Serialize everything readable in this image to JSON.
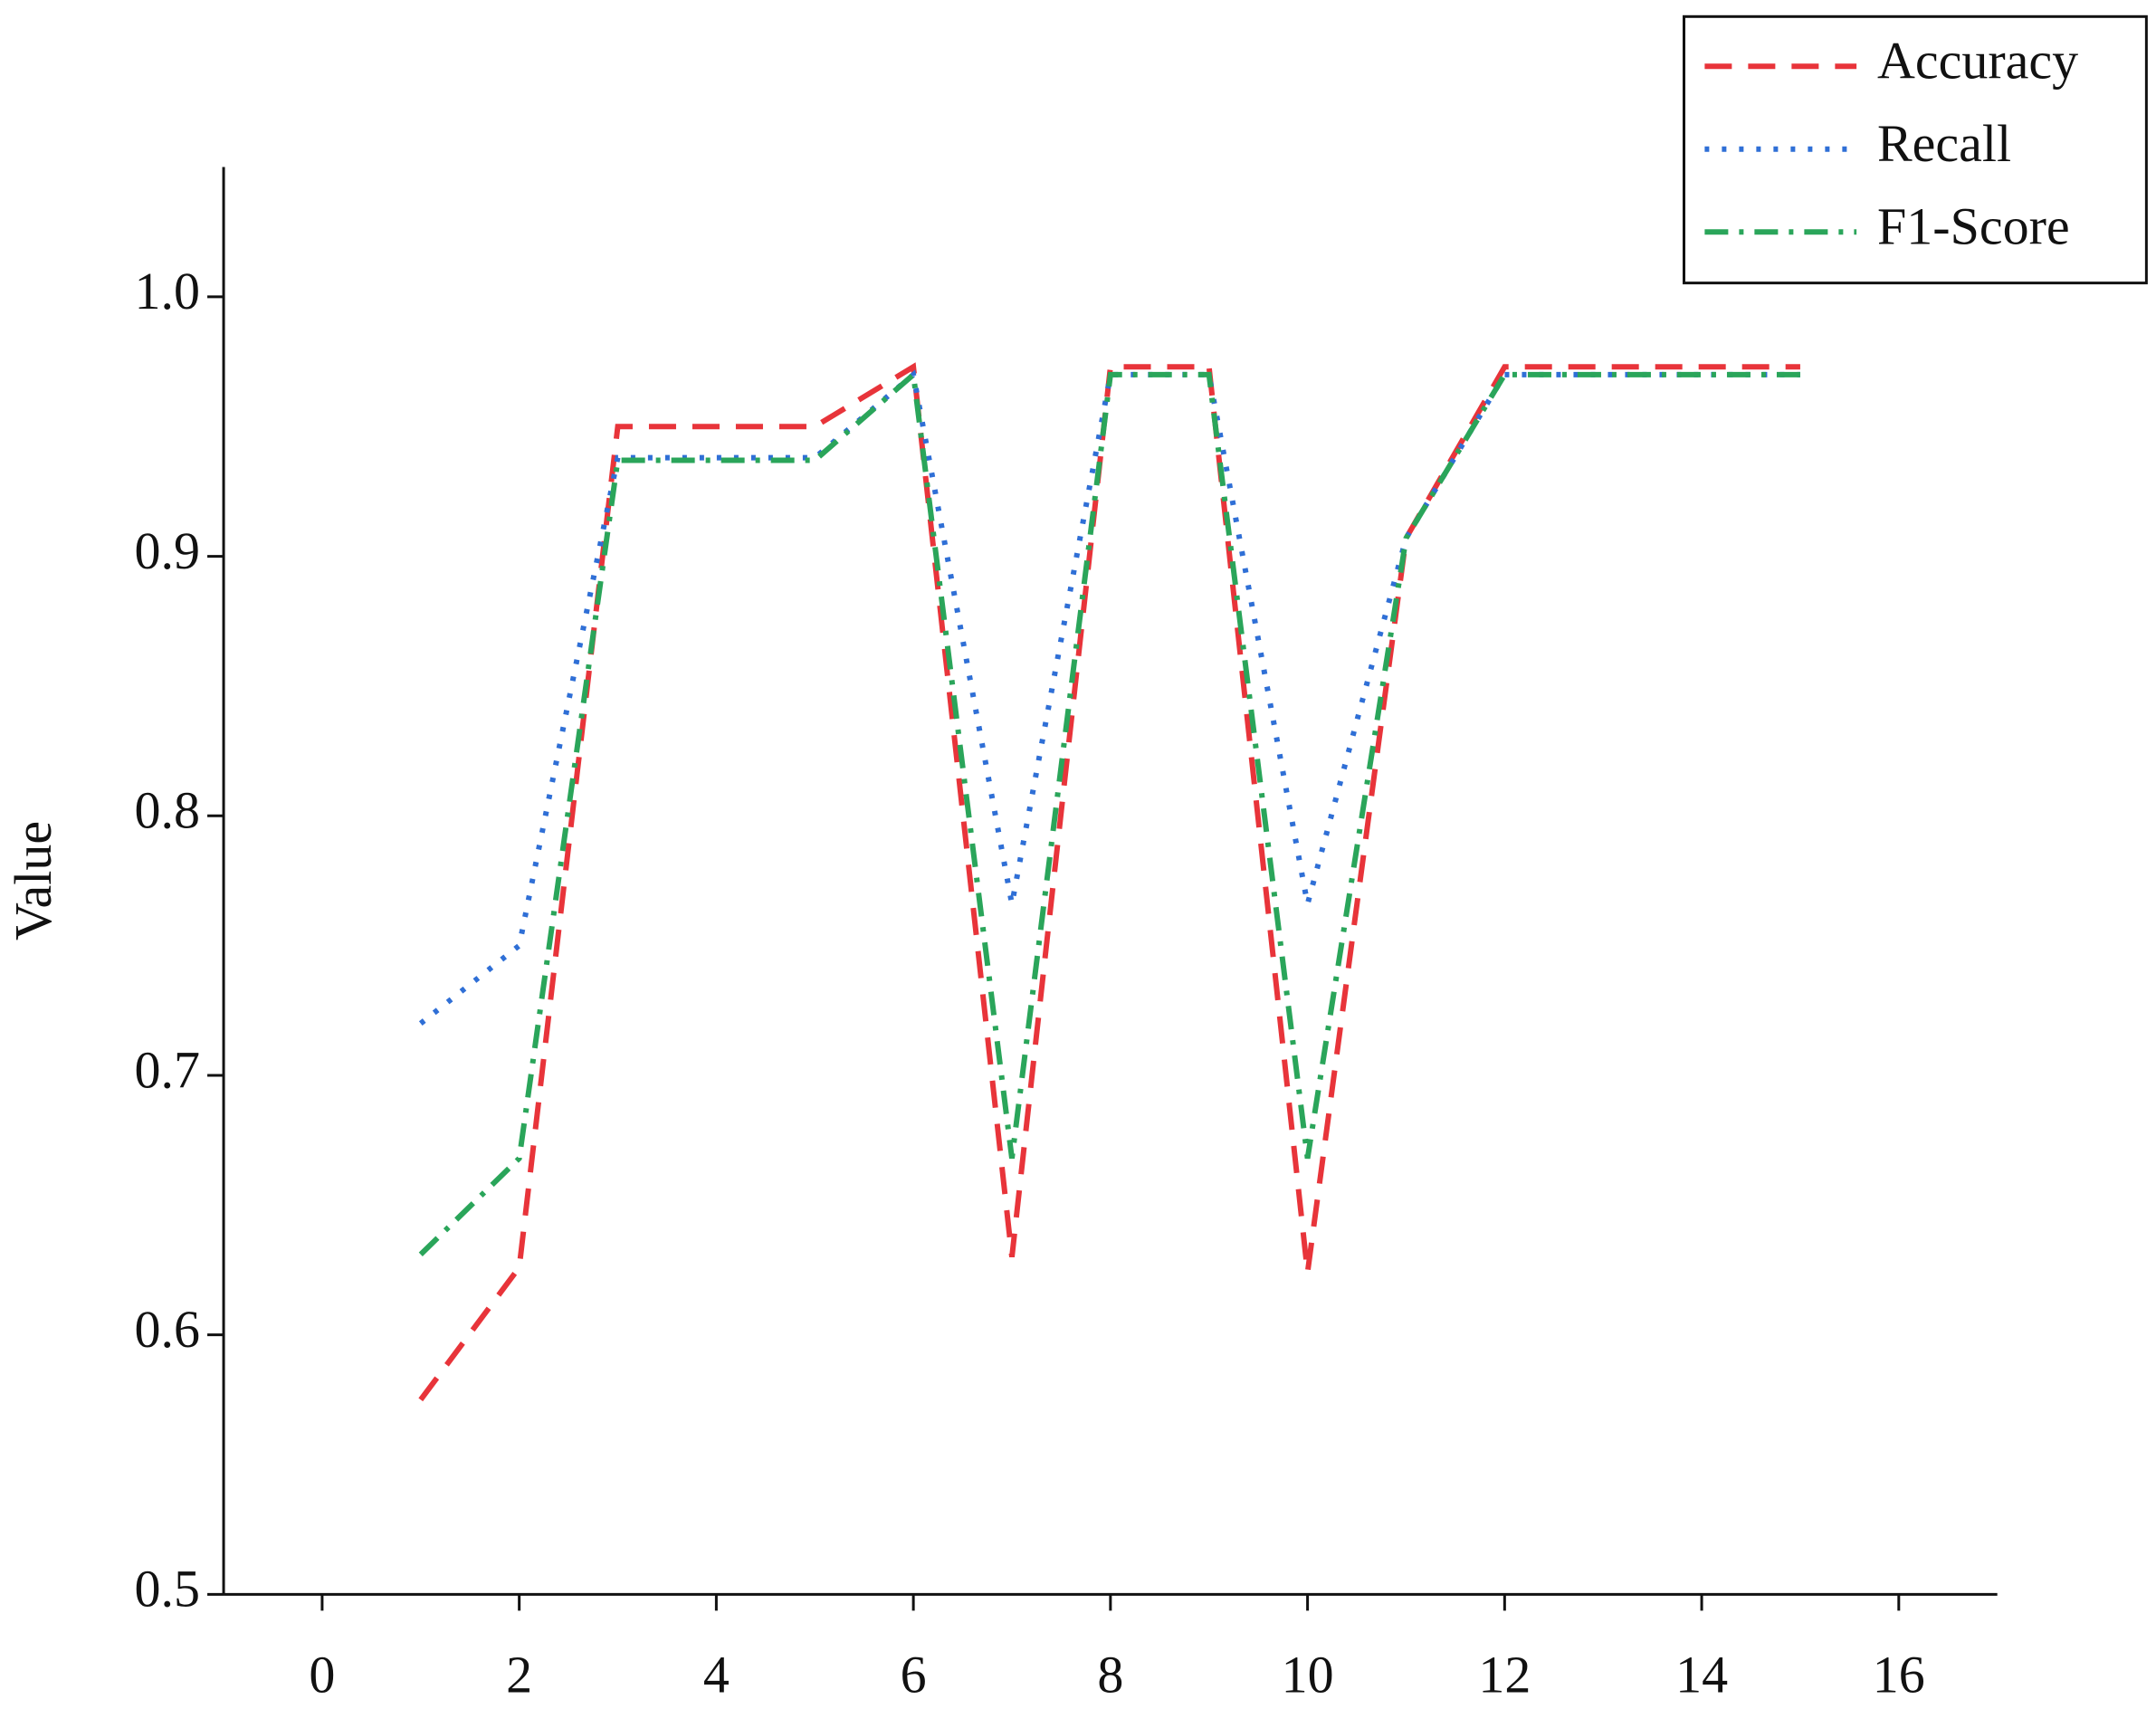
{
  "chart_data": {
    "type": "line",
    "y_label": "Value",
    "x": [
      1,
      2,
      3,
      4,
      5,
      6,
      7,
      8,
      9,
      10,
      11,
      12,
      13,
      14,
      15
    ],
    "series": [
      {
        "name": "Accuracy",
        "color": "#e8343a",
        "dash": "dashed",
        "values": [
          0.575,
          0.626,
          0.95,
          0.95,
          0.95,
          0.973,
          0.63,
          0.973,
          0.973,
          0.624,
          0.907,
          0.973,
          0.973,
          0.973,
          0.973
        ]
      },
      {
        "name": "Recall",
        "color": "#2f6fd6",
        "dash": "dotted",
        "values": [
          0.72,
          0.75,
          0.938,
          0.938,
          0.938,
          0.97,
          0.766,
          0.97,
          0.97,
          0.766,
          0.907,
          0.97,
          0.97,
          0.97,
          0.97
        ]
      },
      {
        "name": "F1-Score",
        "color": "#2aa55a",
        "dash": "dashdot",
        "values": [
          0.631,
          0.668,
          0.937,
          0.937,
          0.937,
          0.97,
          0.668,
          0.97,
          0.97,
          0.668,
          0.907,
          0.97,
          0.97,
          0.97,
          0.97
        ]
      }
    ],
    "xlim": [
      -1,
      17
    ],
    "ylim": [
      0.5,
      1.05
    ],
    "xticks": [
      0,
      2,
      4,
      6,
      8,
      10,
      12,
      14,
      16
    ],
    "yticks": [
      {
        "value": 0.5,
        "label": "0.5"
      },
      {
        "value": 0.6,
        "label": "0.6"
      },
      {
        "value": 0.7,
        "label": "0.7"
      },
      {
        "value": 0.8,
        "label": "0.8"
      },
      {
        "value": 0.9,
        "label": "0.9"
      },
      {
        "value": 1.0,
        "label": "1.0"
      }
    ],
    "legend": "upper right",
    "grid": false
  }
}
